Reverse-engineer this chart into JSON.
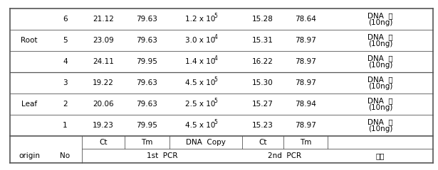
{
  "rows": [
    {
      "no": "1",
      "ct1": "19.23",
      "tm1": "79.95",
      "dna_copy": "4.5 x 10",
      "dna_exp": "5",
      "ct2": "15.23",
      "tm2": "78.97"
    },
    {
      "no": "2",
      "ct1": "20.06",
      "tm1": "79.63",
      "dna_copy": "2.5 x 10",
      "dna_exp": "5",
      "ct2": "15.27",
      "tm2": "78.94"
    },
    {
      "no": "3",
      "ct1": "19.22",
      "tm1": "79.63",
      "dna_copy": "4.5 x 10",
      "dna_exp": "5",
      "ct2": "15.30",
      "tm2": "78.97"
    },
    {
      "no": "4",
      "ct1": "24.11",
      "tm1": "79.95",
      "dna_copy": "1.4 x 10",
      "dna_exp": "4",
      "ct2": "16.22",
      "tm2": "78.97"
    },
    {
      "no": "5",
      "ct1": "23.09",
      "tm1": "79.63",
      "dna_copy": "3.0 x 10",
      "dna_exp": "4",
      "ct2": "15.31",
      "tm2": "78.97"
    },
    {
      "no": "6",
      "ct1": "21.12",
      "tm1": "79.63",
      "dna_copy": "1.2 x 10",
      "dna_exp": "5",
      "ct2": "15.28",
      "tm2": "78.64"
    }
  ],
  "bg_color": "#ffffff",
  "text_color": "#000000",
  "line_color": "#555555",
  "font_size": 7.5,
  "header_font_size": 7.5,
  "note_line1": "DNA  양",
  "note_line2": "(10ng)",
  "bigo": "비고",
  "leaf_label": "Leaf",
  "root_label": "Root",
  "origin_label": "origin",
  "no_label": "No",
  "pcr1_label": "1st  PCR",
  "pcr2_label": "2nd  PCR",
  "ct_label": "Ct",
  "tm_label": "Tm",
  "dna_copy_label": "DNA  Copy"
}
